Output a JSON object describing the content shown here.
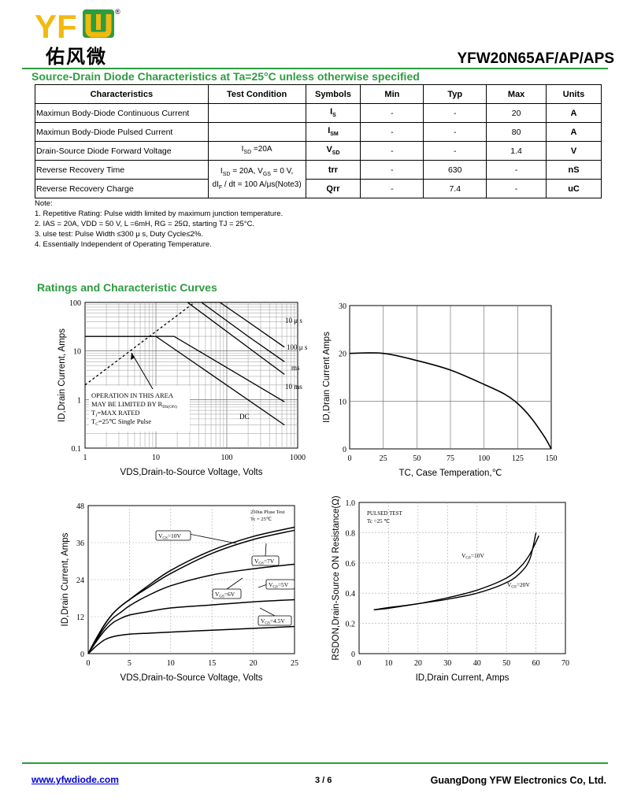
{
  "header": {
    "logo_text": "YFW",
    "logo_cn": "佑风微",
    "registered": "®",
    "part_number": "YFW20N65AF/AP/APS"
  },
  "colors": {
    "brand_green": "#2e9c3f",
    "logo_yellow": "#f2b90f",
    "link_blue": "#0000cc"
  },
  "section1": {
    "title": "Source-Drain Diode Characteristics at Ta=25°C unless otherwise specified"
  },
  "table": {
    "headers": [
      "Characteristics",
      "Test Condition",
      "Symbols",
      "Min",
      "Typ",
      "Max",
      "Units"
    ],
    "rows": [
      {
        "char": "Maximun Body-Diode Continuous Current",
        "cond": "",
        "sym": "I",
        "sub": "S",
        "min": "-",
        "typ": "-",
        "max": "20",
        "unit": "A"
      },
      {
        "char": "Maximun Body-Diode Pulsed  Current",
        "cond": "",
        "sym": "I",
        "sub": "SM",
        "min": "-",
        "typ": "-",
        "max": "80",
        "unit": "A"
      },
      {
        "char": "Drain-Source Diode Forward Voltage",
        "cond_a": "I",
        "cond_sub": "SD",
        "cond_b": " =20A",
        "sym": "V",
        "sub": "SD",
        "min": "-",
        "typ": "-",
        "max": "1.4",
        "unit": "V"
      },
      {
        "char": "Reverse Recovery Time",
        "sym": "trr",
        "min": "-",
        "typ": "630",
        "max": "-",
        "unit": "nS"
      },
      {
        "char": "Reverse Recovery Charge",
        "sym": "Qrr",
        "min": "-",
        "typ": "7.4",
        "max": "-",
        "unit": "uC"
      }
    ],
    "merged_cond_line1": "I_SD = 20A, V_GS = 0 V,",
    "merged_cond_line1_parts": [
      "I",
      "SD",
      " = 20A, V",
      "GS",
      " = 0 V,"
    ],
    "merged_cond_line2_parts": [
      "dI",
      "F",
      " / dt = 100 A/μs(Note3)"
    ]
  },
  "notes": {
    "title": "Note:",
    "items": [
      "1. Repetitive Rating: Pulse width limited by maximum junction temperature.",
      "2. IAS = 20A, VDD = 50 V, L =6mH, RG = 25Ω, starting TJ = 25°C.",
      "3. ulse test: Pulse Width ≤300 μ s, Duty Cycle≤2%.",
      "4. Essentially Independent of Operating Temperature."
    ]
  },
  "section2": {
    "title": "Ratings and Characteristic Curves"
  },
  "chart_data": [
    {
      "type": "line",
      "xscale": "log",
      "yscale": "log",
      "xlim": [
        1,
        1000
      ],
      "ylim": [
        0.1,
        100
      ],
      "x_ticks": [
        "1",
        "10",
        "100",
        "1000"
      ],
      "y_ticks": [
        "0.1",
        "1",
        "10",
        "100"
      ],
      "xlabel": "VDS,Drain-to-Source Voltage, Volts",
      "ylabel": "ID,Drain Current, Amps",
      "series": [
        {
          "name": "10 μ s",
          "x": [
            28,
            80,
            160,
            650
          ],
          "y": [
            100,
            100,
            50,
            12
          ]
        },
        {
          "name": "100 μ s",
          "x": [
            44,
            200,
            650
          ],
          "y": [
            100,
            20,
            6
          ]
        },
        {
          "name": "ms",
          "x": [
            28,
            650
          ],
          "y": [
            100,
            3.3
          ]
        },
        {
          "name": "10 ms",
          "x": [
            1,
            18,
            650
          ],
          "y": [
            20,
            20,
            0.9
          ]
        },
        {
          "name": "DC",
          "x": [
            1,
            10,
            650
          ],
          "y": [
            20,
            20,
            0.3
          ]
        },
        {
          "name": "",
          "x": [
            1,
            35
          ],
          "y": [
            2,
            100
          ]
        }
      ],
      "annotations": [
        "OPERATION IN THIS AREA",
        "MAY BE LIMITED BY R",
        "DS(ON)",
        "T",
        "J",
        "=MAX RATED",
        "T",
        "C",
        "=25℃  Single Pulse",
        "DC"
      ]
    },
    {
      "type": "line",
      "xlim": [
        0,
        150
      ],
      "ylim": [
        0,
        30
      ],
      "x_ticks": [
        "0",
        "25",
        "50",
        "75",
        "100",
        "125",
        "150"
      ],
      "y_ticks": [
        "0",
        "10",
        "20",
        "30"
      ],
      "xlabel": "TC, Case Temperation,℃",
      "ylabel": "ID,Drain Current Amps",
      "series": [
        {
          "name": "",
          "x": [
            0,
            25,
            50,
            75,
            100,
            115,
            125,
            135,
            145,
            150
          ],
          "y": [
            20,
            20,
            18.5,
            16.5,
            13.5,
            11.5,
            9.5,
            6.5,
            2.5,
            0
          ]
        }
      ]
    },
    {
      "type": "line",
      "xlim": [
        0,
        25
      ],
      "ylim": [
        0,
        48
      ],
      "x_ticks": [
        "0",
        "5",
        "10",
        "15",
        "20",
        "25"
      ],
      "y_ticks": [
        "0",
        "12",
        "24",
        "36",
        "48"
      ],
      "xlabel": "VDS,Drain-to-Source Voltage, Volts",
      "ylabel": "ID,Drain Current, Amps",
      "series": [
        {
          "name": "V_GS=10V",
          "x": [
            0,
            1,
            2,
            3,
            4,
            5,
            7,
            10,
            15,
            20,
            25
          ],
          "y": [
            0,
            5,
            9.5,
            13,
            15.5,
            17.5,
            21.5,
            27,
            33.5,
            38,
            41
          ]
        },
        {
          "name": "V_GS=7V",
          "x": [
            0,
            1,
            2,
            3,
            4,
            5,
            7,
            10,
            15,
            20,
            25
          ],
          "y": [
            0,
            5,
            9.5,
            13,
            15.5,
            17.5,
            21,
            26,
            32.5,
            37,
            40
          ]
        },
        {
          "name": "V_GS=6V",
          "x": [
            0,
            1,
            2,
            3,
            4,
            5,
            7,
            10,
            15,
            20,
            25
          ],
          "y": [
            0,
            4.5,
            8.5,
            11.5,
            13.5,
            15.5,
            18.5,
            22,
            25.5,
            27.5,
            29
          ]
        },
        {
          "name": "V_GS=5V",
          "x": [
            0,
            1,
            2,
            3,
            4,
            5,
            7,
            10,
            15,
            20,
            25
          ],
          "y": [
            0,
            4,
            7.5,
            10,
            11.5,
            12.5,
            13.5,
            14.8,
            15.8,
            16.8,
            17.5
          ]
        },
        {
          "name": "V_GS=4.5V",
          "x": [
            0,
            1,
            2,
            3,
            4,
            5,
            7,
            10,
            15,
            20,
            25
          ],
          "y": [
            0,
            2.5,
            4.5,
            5.5,
            6,
            6.3,
            6.6,
            7,
            7.6,
            8.2,
            8.8
          ]
        }
      ],
      "annotations": [
        "250us Pluse Test",
        "Tc = 25℃"
      ]
    },
    {
      "type": "line",
      "xlim": [
        0,
        70
      ],
      "ylim": [
        0,
        1.0
      ],
      "x_ticks": [
        "0",
        "10",
        "20",
        "30",
        "40",
        "50",
        "60",
        "70"
      ],
      "y_ticks": [
        "0",
        "0.2",
        "0.4",
        "0.6",
        "0.8",
        "1.0"
      ],
      "xlabel": "ID,Drain Current, Amps",
      "ylabel": "RSDON,Drain-Source ON Resistance(Ω)",
      "series": [
        {
          "name": "V_GS=10V",
          "x": [
            5,
            10,
            20,
            30,
            40,
            50,
            55,
            58,
            61
          ],
          "y": [
            0.29,
            0.305,
            0.33,
            0.37,
            0.42,
            0.5,
            0.58,
            0.66,
            0.78
          ]
        },
        {
          "name": "V_GS=20V",
          "x": [
            5,
            10,
            20,
            30,
            40,
            50,
            55,
            58,
            60
          ],
          "y": [
            0.29,
            0.3,
            0.33,
            0.36,
            0.4,
            0.47,
            0.54,
            0.63,
            0.8
          ]
        }
      ],
      "annotations": [
        "PULSED   TEST",
        "Tc =25  ℃"
      ]
    }
  ],
  "footer": {
    "link": "www.yfwdiode.com",
    "page": "3 / 6",
    "company": "GuangDong YFW Electronics Co, Ltd."
  }
}
